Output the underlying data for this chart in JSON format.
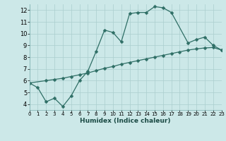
{
  "xlabel": "Humidex (Indice chaleur)",
  "bg_color": "#cce8e8",
  "line_color": "#2e6e65",
  "grid_color": "#aacece",
  "curve1_x": [
    0,
    1,
    2,
    3,
    4,
    5,
    6,
    7,
    8,
    9,
    10,
    11,
    12,
    13,
    14,
    15,
    16,
    17,
    19,
    20,
    21,
    22,
    23
  ],
  "curve1_y": [
    5.8,
    5.4,
    4.2,
    4.5,
    3.8,
    4.7,
    6.0,
    6.8,
    8.5,
    10.3,
    10.1,
    9.3,
    11.7,
    11.8,
    11.8,
    12.3,
    12.2,
    11.8,
    9.2,
    9.5,
    9.7,
    9.0,
    8.6
  ],
  "curve2_x": [
    0,
    2,
    3,
    4,
    5,
    6,
    7,
    8,
    9,
    10,
    11,
    12,
    13,
    14,
    15,
    16,
    17,
    18,
    19,
    20,
    21,
    22,
    23
  ],
  "curve2_y": [
    5.8,
    6.0,
    6.1,
    6.2,
    6.35,
    6.5,
    6.65,
    6.85,
    7.05,
    7.2,
    7.4,
    7.55,
    7.7,
    7.85,
    8.0,
    8.15,
    8.3,
    8.45,
    8.6,
    8.7,
    8.78,
    8.82,
    8.6
  ],
  "xlim": [
    0,
    23
  ],
  "ylim": [
    3.5,
    12.5
  ],
  "yticks": [
    4,
    5,
    6,
    7,
    8,
    9,
    10,
    11,
    12
  ],
  "xticks": [
    0,
    1,
    2,
    3,
    4,
    5,
    6,
    7,
    8,
    9,
    10,
    11,
    12,
    13,
    14,
    15,
    16,
    17,
    18,
    19,
    20,
    21,
    22,
    23
  ],
  "markersize": 2.5,
  "linewidth": 0.9
}
